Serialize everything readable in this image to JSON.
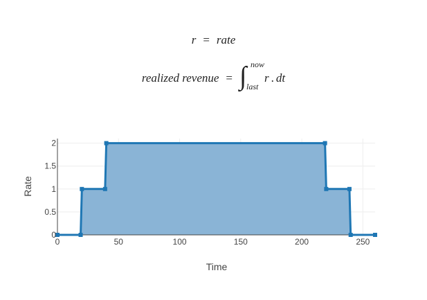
{
  "equations": {
    "rate": {
      "lhs": "r",
      "equals": "=",
      "rhs": "rate"
    },
    "revenue": {
      "lhs": "realized revenue",
      "equals": "=",
      "integral": "∫",
      "upper_limit": "now",
      "lower_limit": "last",
      "integrand": "r",
      "dot": ".",
      "differential": "dt"
    }
  },
  "chart_data": {
    "type": "area",
    "xlabel": "Time",
    "ylabel": "Rate",
    "xlim": [
      0,
      260
    ],
    "ylim": [
      0,
      2.1
    ],
    "x_ticks": [
      0,
      50,
      100,
      150,
      200,
      250
    ],
    "y_ticks": [
      0,
      0.5,
      1,
      1.5,
      2
    ],
    "x_tick_labels": [
      "0",
      "50",
      "100",
      "150",
      "200",
      "250"
    ],
    "y_tick_labels": [
      "0",
      "0.5",
      "1",
      "1.5",
      "2"
    ],
    "grid": true,
    "legend": "none",
    "series": [
      {
        "x": [
          0,
          19,
          20,
          39,
          40,
          219,
          220,
          239,
          240,
          260
        ],
        "values": [
          0,
          0,
          1,
          1,
          2,
          2,
          1,
          1,
          0,
          0
        ],
        "line_color": "#1f77b4",
        "fill_color": "#8ab4d6"
      }
    ]
  }
}
